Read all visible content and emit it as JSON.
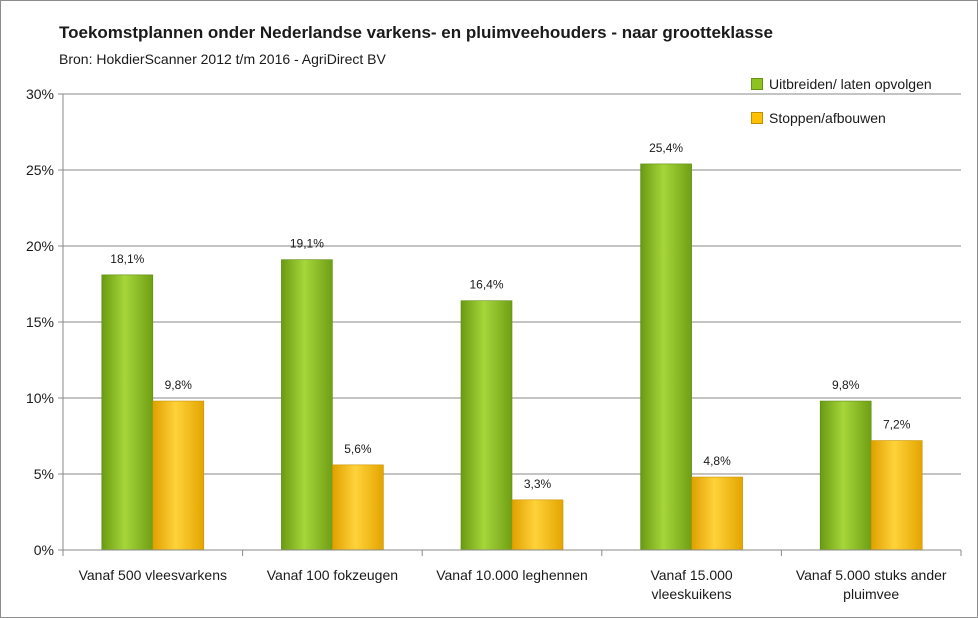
{
  "chart_data": {
    "type": "bar",
    "title": "Toekomstplannen onder Nederlandse varkens- en pluimveehouders - naar grootteklasse",
    "subtitle": "Bron: HokdierScanner 2012 t/m 2016 - AgriDirect BV",
    "categories": [
      [
        "Vanaf 500 vleesvarkens"
      ],
      [
        "Vanaf 100 fokzeugen"
      ],
      [
        "Vanaf 10.000 leghennen"
      ],
      [
        "Vanaf 15.000",
        "vleeskuikens"
      ],
      [
        "Vanaf 5.000 stuks ander",
        "pluimvee"
      ]
    ],
    "series": [
      {
        "name": "Uitbreiden/ laten opvolgen",
        "color": "#8dc21f",
        "values": [
          18.1,
          19.1,
          16.4,
          25.4,
          9.8
        ],
        "labels": [
          "18,1%",
          "19,1%",
          "16,4%",
          "25,4%",
          "9,8%"
        ]
      },
      {
        "name": "Stoppen/afbouwen",
        "color": "#ffc000",
        "values": [
          9.8,
          5.6,
          3.3,
          4.8,
          7.2
        ],
        "labels": [
          "9,8%",
          "5,6%",
          "3,3%",
          "4,8%",
          "7,2%"
        ]
      }
    ],
    "ylim": [
      0,
      30
    ],
    "yticks": [
      0,
      5,
      10,
      15,
      20,
      25,
      30
    ],
    "ytick_labels": [
      "0%",
      "5%",
      "10%",
      "15%",
      "20%",
      "25%",
      "30%"
    ],
    "grid": true,
    "legend_position": "top-right"
  }
}
